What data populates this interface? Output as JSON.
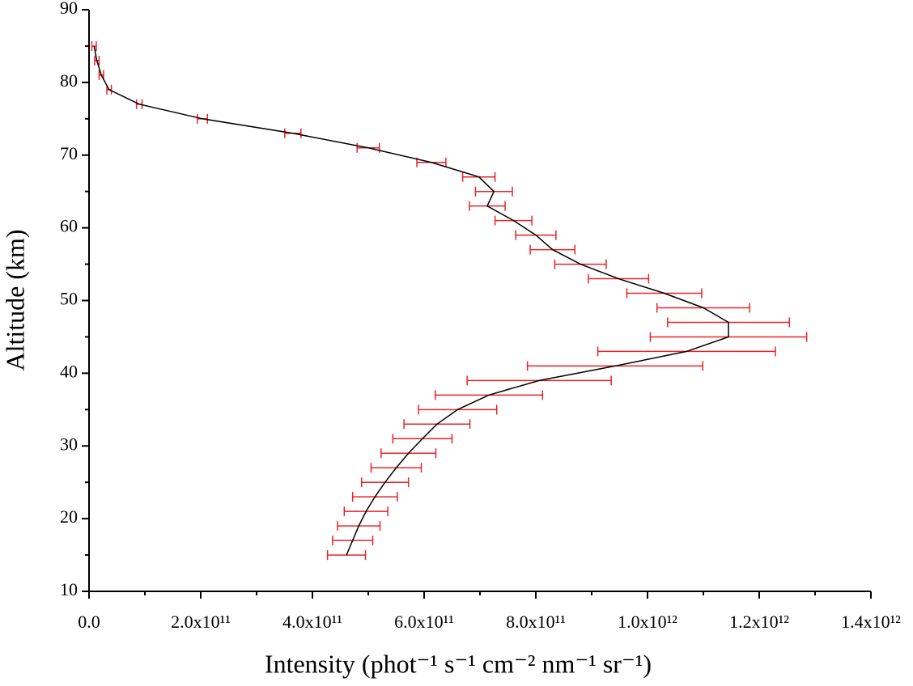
{
  "chart_data": {
    "type": "line-errorbar",
    "x_label": "Intensity (phot⁻¹ s⁻¹ cm⁻² nm⁻¹ sr⁻¹)",
    "y_label": "Altitude (km)",
    "y": [
      15,
      17,
      19,
      21,
      23,
      25,
      27,
      29,
      31,
      33,
      35,
      37,
      39,
      41,
      43,
      45,
      47,
      49,
      51,
      53,
      55,
      57,
      59,
      61,
      63,
      65,
      67,
      69,
      71,
      73,
      75,
      77,
      79,
      81,
      83,
      85
    ],
    "series": [
      {
        "color": "#000000",
        "error_color": "#e8232a",
        "values": [
          461000000000.0,
          472000000000.0,
          483000000000.0,
          496000000000.0,
          512000000000.0,
          530000000000.0,
          550000000000.0,
          572000000000.0,
          597000000000.0,
          623000000000.0,
          660000000000.0,
          716000000000.0,
          806000000000.0,
          942000000000.0,
          1070000000000.0,
          1145000000000.0,
          1145000000000.0,
          1100000000000.0,
          1030000000000.0,
          948000000000.0,
          880000000000.0,
          830000000000.0,
          800000000000.0,
          760000000000.0,
          713000000000.0,
          725000000000.0,
          698000000000.0,
          613000000000.0,
          500000000000.0,
          365000000000.0,
          203000000000.0,
          90000000000.0,
          36000000000.0,
          22000000000.0,
          14000000000.0,
          9000000000.0
        ],
        "errors": [
          34000000000.0,
          36000000000.0,
          38000000000.0,
          39000000000.0,
          40000000000.0,
          42000000000.0,
          45000000000.0,
          49000000000.0,
          53000000000.0,
          59000000000.0,
          70000000000.0,
          96000000000.0,
          129000000000.0,
          157000000000.0,
          159000000000.0,
          140000000000.0,
          109000000000.0,
          83000000000.0,
          67000000000.0,
          54000000000.0,
          46000000000.0,
          40000000000.0,
          36000000000.0,
          33000000000.0,
          32000000000.0,
          33000000000.0,
          29000000000.0,
          26000000000.0,
          20000000000.0,
          14500000000.0,
          9000000000.0,
          5000000000.0,
          4000000000.0,
          4000000000.0,
          4000000000.0,
          4000000000.0
        ]
      }
    ],
    "xlim": [
      0,
      1400000000000.0
    ],
    "xticks": [
      {
        "value": 0,
        "label": "0.0"
      },
      {
        "value": 200000000000.0,
        "label": "2.0x10¹¹"
      },
      {
        "value": 400000000000.0,
        "label": "4.0x10¹¹"
      },
      {
        "value": 600000000000.0,
        "label": "6.0x10¹¹"
      },
      {
        "value": 800000000000.0,
        "label": "8.0x10¹¹"
      },
      {
        "value": 1000000000000.0,
        "label": "1.0x10¹²"
      },
      {
        "value": 1200000000000.0,
        "label": "1.2x10¹²"
      },
      {
        "value": 1400000000000.0,
        "label": "1.4x10¹²"
      }
    ],
    "xminorticks": [
      100000000000.0,
      300000000000.0,
      500000000000.0,
      700000000000.0,
      900000000000.0,
      1100000000000.0,
      1300000000000.0
    ],
    "ylim": [
      10,
      90
    ],
    "yticks": [
      10,
      20,
      30,
      40,
      50,
      60,
      70,
      80,
      90
    ],
    "yminorticks": [
      15,
      25,
      35,
      45,
      55,
      65,
      75,
      85
    ]
  }
}
